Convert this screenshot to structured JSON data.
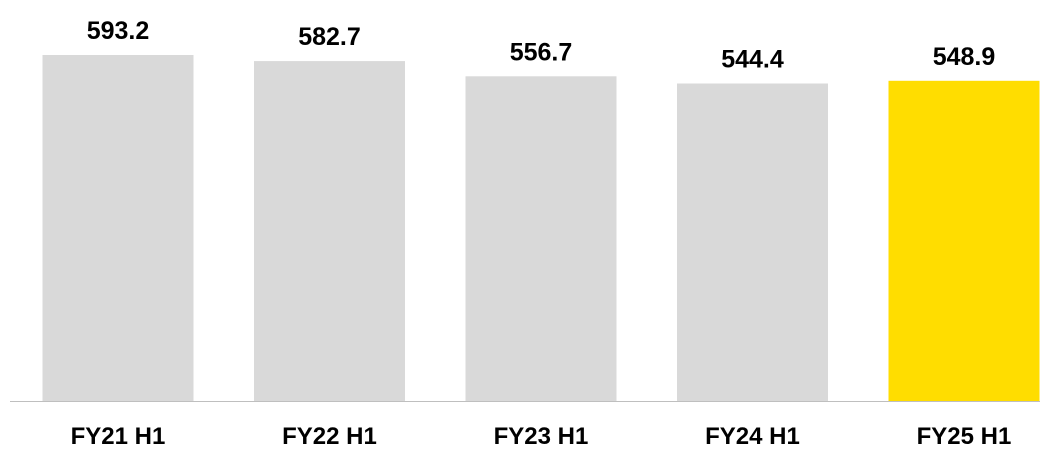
{
  "chart_data": {
    "type": "bar",
    "categories": [
      "FY21 H1",
      "FY22 H1",
      "FY23 H1",
      "FY24 H1",
      "FY25 H1"
    ],
    "values": [
      593.2,
      582.7,
      556.7,
      544.4,
      548.9
    ],
    "value_labels": [
      "593.2",
      "582.7",
      "556.7",
      "544.4",
      "548.9"
    ],
    "title": "",
    "xlabel": "",
    "ylabel": "",
    "ylim": [
      0,
      593.2
    ],
    "grid": false,
    "legend": "none",
    "colors": {
      "default_bar": "#d9d9d9",
      "highlight_bar": "#ffdd00",
      "axis_line": "#bfbfbf"
    },
    "highlight_index": 4
  }
}
